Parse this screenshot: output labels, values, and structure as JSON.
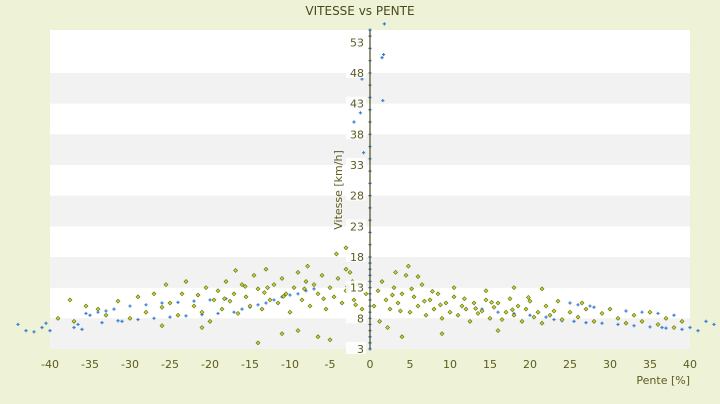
{
  "chart_data": {
    "type": "scatter",
    "title": "VITESSE vs PENTE",
    "xlabel": "Pente [%]",
    "ylabel": "Vitesse [km/h]",
    "xlim": [
      -40,
      40
    ],
    "ylim": [
      3,
      55
    ],
    "x_ticks": [
      -40,
      -35,
      -30,
      -25,
      -20,
      -15,
      -10,
      -5,
      0,
      5,
      10,
      15,
      20,
      25,
      30,
      35,
      40
    ],
    "y_ticks": [
      3,
      8,
      13,
      18,
      23,
      28,
      33,
      38,
      43,
      48,
      53
    ],
    "grid": "horizontal alternating bands",
    "legend": "none",
    "series": [
      {
        "color": "#3a7fd0",
        "marker": "blue-cross",
        "points": [
          [
            -44.0,
            7.0
          ],
          [
            -43.0,
            6.0
          ],
          [
            -42.0,
            5.8
          ],
          [
            -41.0,
            6.5
          ],
          [
            -40.5,
            7.2
          ],
          [
            -40.0,
            6.0
          ],
          [
            -37.0,
            6.5
          ],
          [
            -36.5,
            7.0
          ],
          [
            -36.0,
            6.2
          ],
          [
            -35.5,
            8.8
          ],
          [
            -35.0,
            8.5
          ],
          [
            -34.0,
            9.0
          ],
          [
            -33.0,
            9.2
          ],
          [
            -32.0,
            9.5
          ],
          [
            -31.0,
            7.5
          ],
          [
            -30.0,
            10.0
          ],
          [
            -29.0,
            7.8
          ],
          [
            -28.0,
            10.2
          ],
          [
            -27.0,
            8.0
          ],
          [
            -26.0,
            10.5
          ],
          [
            -25.0,
            8.2
          ],
          [
            -24.0,
            10.6
          ],
          [
            -23.0,
            8.4
          ],
          [
            -22.0,
            10.8
          ],
          [
            -21.0,
            8.6
          ],
          [
            -20.0,
            11.0
          ],
          [
            -19.0,
            8.8
          ],
          [
            -18.0,
            11.2
          ],
          [
            -17.0,
            9.0
          ],
          [
            -16.0,
            9.5
          ],
          [
            -15.0,
            9.8
          ],
          [
            -14.0,
            10.2
          ],
          [
            -13.0,
            10.5
          ],
          [
            -12.0,
            11.0
          ],
          [
            -11.0,
            11.5
          ],
          [
            -10.0,
            11.8
          ],
          [
            -9.0,
            12.0
          ],
          [
            -8.0,
            12.5
          ],
          [
            -7.0,
            12.8
          ],
          [
            -33.5,
            7.3
          ],
          [
            -31.5,
            7.6
          ],
          [
            0.0,
            3.0
          ],
          [
            0.0,
            4.0
          ],
          [
            0.0,
            5.0
          ],
          [
            0.0,
            6.0
          ],
          [
            0.0,
            7.0
          ],
          [
            0.0,
            8.0
          ],
          [
            0.0,
            9.0
          ],
          [
            0.0,
            10.0
          ],
          [
            0.0,
            11.0
          ],
          [
            0.0,
            12.0
          ],
          [
            0.0,
            13.0
          ],
          [
            0.0,
            14.0
          ],
          [
            0.0,
            15.0
          ],
          [
            0.0,
            16.0
          ],
          [
            0.0,
            17.0
          ],
          [
            0.0,
            18.0
          ],
          [
            0.0,
            20.0
          ],
          [
            0.0,
            22.0
          ],
          [
            0.0,
            24.0
          ],
          [
            0.0,
            26.0
          ],
          [
            0.0,
            28.0
          ],
          [
            0.0,
            30.0
          ],
          [
            0.0,
            32.0
          ],
          [
            0.0,
            34.0
          ],
          [
            0.0,
            36.0
          ],
          [
            0.0,
            38.0
          ],
          [
            0.0,
            40.0
          ],
          [
            0.0,
            42.0
          ],
          [
            0.0,
            44.0
          ],
          [
            0.0,
            46.0
          ],
          [
            0.0,
            48.0
          ],
          [
            0.0,
            50.0
          ],
          [
            0.0,
            52.0
          ],
          [
            0.0,
            54.0
          ],
          [
            0.0,
            55.0
          ],
          [
            -1.5,
            43.0
          ],
          [
            -1.2,
            41.5
          ],
          [
            -1.0,
            47.0
          ],
          [
            -0.8,
            35.0
          ],
          [
            -1.4,
            53.0
          ],
          [
            1.5,
            50.5
          ],
          [
            1.7,
            51.0
          ],
          [
            1.8,
            56.0
          ],
          [
            1.6,
            43.5
          ],
          [
            -2.0,
            40.0
          ],
          [
            14.0,
            9.5
          ],
          [
            16.0,
            9.0
          ],
          [
            18.0,
            8.8
          ],
          [
            20.0,
            8.5
          ],
          [
            22.0,
            8.2
          ],
          [
            23.0,
            7.8
          ],
          [
            24.0,
            7.6
          ],
          [
            25.0,
            10.5
          ],
          [
            26.0,
            10.2
          ],
          [
            27.0,
            7.3
          ],
          [
            28.0,
            9.8
          ],
          [
            29.0,
            7.2
          ],
          [
            30.0,
            9.5
          ],
          [
            31.0,
            7.0
          ],
          [
            32.0,
            9.2
          ],
          [
            33.0,
            6.8
          ],
          [
            34.0,
            9.0
          ],
          [
            35.0,
            6.6
          ],
          [
            36.0,
            8.8
          ],
          [
            37.0,
            6.4
          ],
          [
            38.0,
            8.5
          ],
          [
            39.0,
            6.2
          ],
          [
            40.0,
            6.5
          ],
          [
            41.0,
            6.0
          ],
          [
            42.0,
            7.5
          ],
          [
            43.0,
            7.0
          ],
          [
            44.0,
            7.8
          ],
          [
            27.5,
            10.0
          ],
          [
            25.5,
            7.5
          ],
          [
            36.5,
            6.5
          ]
        ]
      },
      {
        "color": "#8a9a10",
        "marker": "olive-diamond",
        "points": [
          [
            -39.0,
            8.0
          ],
          [
            -37.5,
            11.0
          ],
          [
            -37.0,
            7.5
          ],
          [
            -35.5,
            10.0
          ],
          [
            -34.0,
            9.5
          ],
          [
            -33.0,
            8.5
          ],
          [
            -31.5,
            10.8
          ],
          [
            -30.0,
            8.0
          ],
          [
            -29.0,
            11.5
          ],
          [
            -28.0,
            9.0
          ],
          [
            -27.0,
            12.0
          ],
          [
            -26.0,
            9.8
          ],
          [
            -25.5,
            13.5
          ],
          [
            -25.0,
            10.5
          ],
          [
            -24.0,
            8.5
          ],
          [
            -23.5,
            12.0
          ],
          [
            -23.0,
            14.0
          ],
          [
            -22.0,
            10.0
          ],
          [
            -21.5,
            11.8
          ],
          [
            -21.0,
            9.0
          ],
          [
            -20.5,
            13.0
          ],
          [
            -20.0,
            7.5
          ],
          [
            -19.5,
            11.0
          ],
          [
            -19.0,
            12.5
          ],
          [
            -18.5,
            9.5
          ],
          [
            -18.0,
            14.0
          ],
          [
            -17.5,
            10.8
          ],
          [
            -17.0,
            12.0
          ],
          [
            -16.5,
            8.8
          ],
          [
            -16.0,
            13.5
          ],
          [
            -15.5,
            11.5
          ],
          [
            -15.0,
            10.0
          ],
          [
            -14.5,
            15.0
          ],
          [
            -14.0,
            12.8
          ],
          [
            -13.5,
            9.5
          ],
          [
            -13.0,
            16.0
          ],
          [
            -12.5,
            11.0
          ],
          [
            -12.0,
            13.5
          ],
          [
            -11.5,
            10.5
          ],
          [
            -11.0,
            14.5
          ],
          [
            -10.5,
            12.0
          ],
          [
            -10.0,
            9.0
          ],
          [
            -9.5,
            13.0
          ],
          [
            -9.0,
            15.5
          ],
          [
            -8.5,
            11.0
          ],
          [
            -8.0,
            14.0
          ],
          [
            -7.5,
            10.0
          ],
          [
            -7.0,
            13.5
          ],
          [
            -6.5,
            12.0
          ],
          [
            -6.0,
            15.0
          ],
          [
            -5.5,
            9.5
          ],
          [
            -5.0,
            13.0
          ],
          [
            -4.5,
            11.5
          ],
          [
            -4.0,
            14.5
          ],
          [
            -3.5,
            10.5
          ],
          [
            -3.0,
            12.5
          ],
          [
            -2.5,
            15.5
          ],
          [
            -2.0,
            11.0
          ],
          [
            -1.5,
            13.5
          ],
          [
            -1.0,
            9.5
          ],
          [
            -0.5,
            12.0
          ],
          [
            -4.2,
            18.5
          ],
          [
            -3.0,
            19.5
          ],
          [
            -6.5,
            5.0
          ],
          [
            -9.0,
            6.0
          ],
          [
            -11.0,
            5.5
          ],
          [
            -14.0,
            4.0
          ],
          [
            -21.0,
            6.5
          ],
          [
            -26.0,
            6.8
          ],
          [
            -5.0,
            4.5
          ],
          [
            -3.0,
            16.0
          ],
          [
            -2.2,
            14.0
          ],
          [
            -1.8,
            10.2
          ],
          [
            -7.8,
            16.5
          ],
          [
            -12.8,
            13.0
          ],
          [
            -16.8,
            15.8
          ],
          [
            -2.8,
            13.2
          ],
          [
            -5.8,
            11.2
          ],
          [
            -8.2,
            12.8
          ],
          [
            -10.8,
            11.6
          ],
          [
            -13.2,
            12.2
          ],
          [
            -15.6,
            13.2
          ],
          [
            -18.2,
            11.2
          ],
          [
            0.5,
            10.0
          ],
          [
            1.0,
            12.5
          ],
          [
            1.5,
            14.0
          ],
          [
            2.0,
            11.0
          ],
          [
            2.5,
            9.5
          ],
          [
            3.0,
            13.0
          ],
          [
            3.5,
            10.5
          ],
          [
            4.0,
            12.0
          ],
          [
            4.5,
            15.0
          ],
          [
            5.0,
            9.0
          ],
          [
            5.5,
            11.5
          ],
          [
            6.0,
            10.0
          ],
          [
            6.5,
            13.5
          ],
          [
            7.0,
            8.5
          ],
          [
            7.5,
            11.0
          ],
          [
            8.0,
            9.5
          ],
          [
            8.5,
            12.0
          ],
          [
            9.0,
            8.0
          ],
          [
            9.5,
            10.5
          ],
          [
            10.0,
            9.0
          ],
          [
            10.5,
            11.5
          ],
          [
            11.0,
            8.5
          ],
          [
            11.5,
            10.0
          ],
          [
            12.0,
            9.5
          ],
          [
            12.5,
            7.5
          ],
          [
            13.0,
            10.5
          ],
          [
            13.5,
            8.8
          ],
          [
            14.0,
            9.2
          ],
          [
            14.5,
            11.0
          ],
          [
            15.0,
            8.0
          ],
          [
            15.5,
            9.8
          ],
          [
            16.0,
            10.5
          ],
          [
            16.5,
            7.8
          ],
          [
            17.0,
            9.0
          ],
          [
            17.5,
            11.2
          ],
          [
            18.0,
            8.5
          ],
          [
            18.5,
            10.0
          ],
          [
            19.0,
            7.5
          ],
          [
            19.5,
            9.5
          ],
          [
            20.0,
            10.8
          ],
          [
            20.5,
            8.2
          ],
          [
            21.0,
            9.0
          ],
          [
            21.5,
            7.2
          ],
          [
            22.0,
            10.0
          ],
          [
            22.5,
            8.5
          ],
          [
            23.0,
            9.2
          ],
          [
            24.0,
            7.8
          ],
          [
            25.0,
            9.0
          ],
          [
            26.0,
            8.2
          ],
          [
            27.0,
            9.5
          ],
          [
            28.0,
            7.5
          ],
          [
            29.0,
            8.8
          ],
          [
            30.0,
            9.5
          ],
          [
            31.0,
            8.0
          ],
          [
            32.0,
            7.2
          ],
          [
            33.0,
            8.5
          ],
          [
            34.0,
            7.5
          ],
          [
            35.0,
            9.0
          ],
          [
            36.0,
            7.0
          ],
          [
            37.0,
            8.0
          ],
          [
            38.0,
            6.5
          ],
          [
            39.0,
            7.5
          ],
          [
            3.2,
            15.5
          ],
          [
            4.8,
            16.5
          ],
          [
            6.0,
            14.8
          ],
          [
            10.5,
            13.0
          ],
          [
            14.5,
            12.5
          ],
          [
            18.0,
            13.0
          ],
          [
            21.5,
            12.8
          ],
          [
            16.0,
            6.0
          ],
          [
            9.0,
            5.5
          ],
          [
            4.0,
            5.0
          ],
          [
            2.2,
            6.5
          ],
          [
            1.2,
            7.5
          ],
          [
            2.8,
            11.8
          ],
          [
            3.8,
            9.2
          ],
          [
            5.2,
            12.8
          ],
          [
            6.8,
            10.8
          ],
          [
            7.8,
            12.4
          ],
          [
            8.8,
            10.2
          ],
          [
            11.8,
            11.2
          ],
          [
            13.2,
            9.6
          ],
          [
            15.2,
            10.6
          ],
          [
            17.8,
            9.4
          ],
          [
            19.8,
            11.4
          ],
          [
            23.5,
            10.8
          ],
          [
            26.5,
            10.5
          ]
        ]
      }
    ]
  }
}
